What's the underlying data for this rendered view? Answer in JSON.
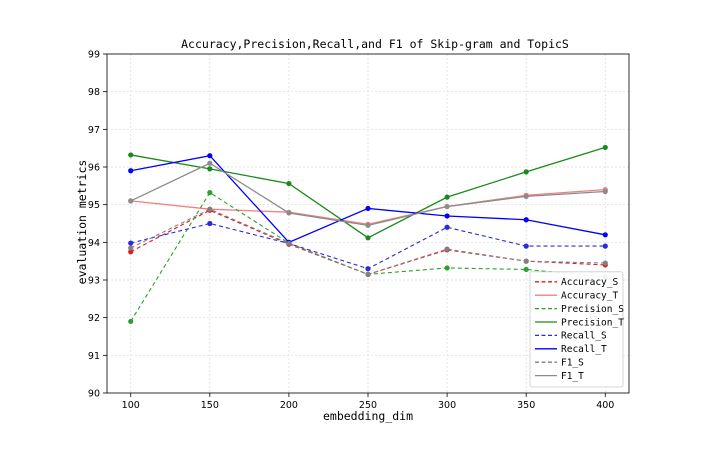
{
  "chart_data": {
    "type": "line",
    "title": "Accuracy,Precision,Recall,and F1 of Skip-gram and TopicS",
    "xlabel": "embedding_dim",
    "ylabel": "evaluation metrics",
    "x": [
      100,
      150,
      200,
      250,
      300,
      350,
      400
    ],
    "xlim": [
      85,
      415
    ],
    "ylim": [
      90,
      99
    ],
    "yticks": [
      90,
      91,
      92,
      93,
      94,
      95,
      96,
      97,
      98,
      99
    ],
    "grid": true,
    "legend_position": "bottom-right",
    "series": [
      {
        "name": "Accuracy_S",
        "color": "#e41a1c",
        "style": "dashed",
        "markers": true,
        "values": [
          93.75,
          94.85,
          93.95,
          93.15,
          93.8,
          93.5,
          93.4
        ]
      },
      {
        "name": "Accuracy_T",
        "color": "#f08080",
        "style": "solid",
        "markers": true,
        "values": [
          95.1,
          94.88,
          94.8,
          94.48,
          94.95,
          95.25,
          95.4
        ]
      },
      {
        "name": "Precision_S",
        "color": "#2ca02c",
        "style": "dashed",
        "markers": true,
        "values": [
          91.9,
          95.32,
          93.98,
          93.15,
          93.32,
          93.28,
          93.08
        ]
      },
      {
        "name": "Precision_T",
        "color": "#1a8a1a",
        "style": "solid",
        "markers": true,
        "values": [
          96.32,
          95.95,
          95.56,
          94.12,
          95.2,
          95.87,
          96.52
        ]
      },
      {
        "name": "Recall_S",
        "color": "#2b2bd8",
        "style": "dashed",
        "markers": true,
        "values": [
          93.98,
          94.5,
          93.97,
          93.3,
          94.4,
          93.9,
          93.9
        ]
      },
      {
        "name": "Recall_T",
        "color": "#0000ff",
        "style": "solid",
        "markers": true,
        "values": [
          95.9,
          96.3,
          94.0,
          94.9,
          94.7,
          94.6,
          94.2
        ]
      },
      {
        "name": "F1_S",
        "color": "#808080",
        "style": "dashed",
        "markers": true,
        "values": [
          93.85,
          94.88,
          93.97,
          93.15,
          93.82,
          93.5,
          93.45
        ]
      },
      {
        "name": "F1_T",
        "color": "#8c8c8c",
        "style": "solid",
        "markers": true,
        "values": [
          95.1,
          96.1,
          94.78,
          94.45,
          94.95,
          95.22,
          95.35
        ]
      }
    ]
  }
}
